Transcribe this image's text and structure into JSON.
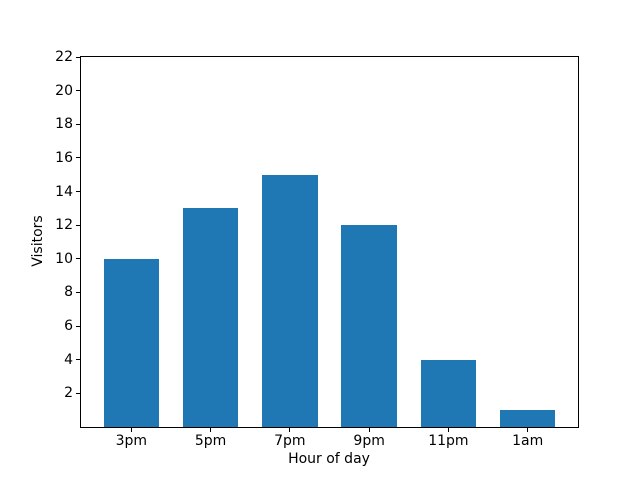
{
  "figure": {
    "background": "#ffffff",
    "text_color": "#000000"
  },
  "chart_data": {
    "type": "bar",
    "title": "",
    "categories": [
      "3pm",
      "5pm",
      "7pm",
      "9pm",
      "11pm",
      "1am"
    ],
    "values": [
      10,
      13,
      15,
      12,
      4,
      1
    ],
    "xlabel": "Hour of day",
    "ylabel": "Visitors",
    "ylim": [
      0,
      22
    ],
    "yticks": [
      2,
      4,
      6,
      8,
      10,
      12,
      14,
      16,
      18,
      20,
      22
    ],
    "bar_color": "#1f77b4",
    "axis_color": "#000000",
    "bar_width": 0.7,
    "grid": false,
    "legend": null
  }
}
